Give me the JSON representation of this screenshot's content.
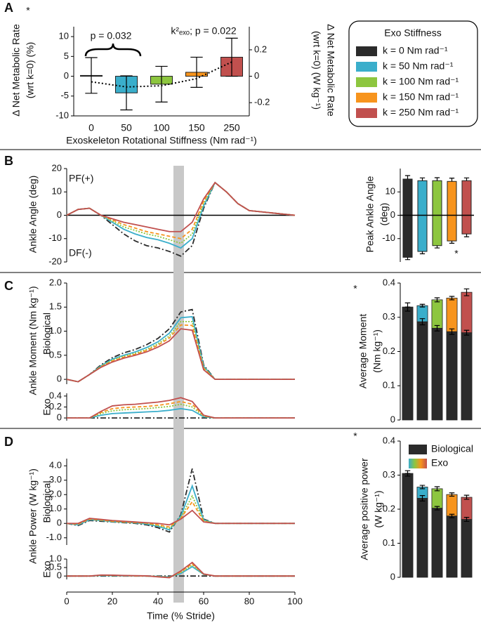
{
  "chart_data": [
    {
      "type": "bar",
      "panel": "A",
      "categories": [
        "0",
        "50",
        "100",
        "150",
        "250"
      ],
      "colors": [
        "#2b2b2b",
        "#3aaecb",
        "#8dc63f",
        "#f7941d",
        "#c1504e"
      ],
      "series": [
        {
          "values": [
            0.2,
            -4.2,
            -2.0,
            1.0,
            4.8
          ],
          "errors": [
            4.5,
            4.3,
            4.5,
            3.8,
            4.8
          ]
        }
      ],
      "error_direction": "both",
      "fit": [
        -1.4,
        -2.7,
        -2.4,
        -0.6,
        3.6
      ],
      "ylim": [
        -10,
        12.5
      ],
      "yticks": [
        -10,
        -5,
        0,
        5,
        10
      ],
      "y2lim": [
        -0.3,
        0.375
      ],
      "y2ticks": [
        -0.2,
        0,
        0.2
      ],
      "ylabel": [
        "Δ Net Metabolic Rate",
        "(wrt k=0) (%)"
      ],
      "y2label": [
        "Δ Net Metabolic Rate",
        "(wrt k=0) (W kg⁻¹)"
      ],
      "xlabel": "Exoskeleton Rotational Stiffness (Nm rad⁻¹)",
      "annotations": [
        "p = 0.032",
        "k²ₑₓₒ; p = 0.022",
        "*"
      ],
      "legend": {
        "title": "Exo Stiffness",
        "labels": [
          "k = 0 Nm rad⁻¹",
          "k = 50 Nm rad⁻¹",
          "k = 100 Nm rad⁻¹",
          "k = 150 Nm rad⁻¹",
          "k = 250 Nm rad⁻¹"
        ]
      }
    },
    {
      "type": "line",
      "panel": "B",
      "zero_line": true,
      "x": [
        0,
        5,
        10,
        15,
        20,
        25,
        30,
        35,
        40,
        45,
        50,
        55,
        60,
        65,
        70,
        75,
        80,
        85,
        90,
        95,
        100
      ],
      "xlim": [
        0,
        100
      ],
      "ylim": [
        -20,
        20
      ],
      "yticks": [
        -20,
        -10,
        0,
        10,
        20
      ],
      "ylabel": "Ankle Angle (deg)",
      "annotations": [
        "PF(+)",
        "DF(-)"
      ],
      "series": [
        {
          "color": "#2b2b2b",
          "dash": "8 3 2 3",
          "values": [
            0,
            2.5,
            3,
            0,
            -4,
            -8,
            -11,
            -13,
            -14,
            -15.5,
            -17.5,
            -13,
            3,
            14,
            10,
            5,
            2,
            1.5,
            1,
            0.5,
            0
          ]
        },
        {
          "color": "#3aaecb",
          "dash": "none",
          "values": [
            0,
            2.5,
            3,
            0,
            -3,
            -6,
            -8,
            -9.5,
            -10.5,
            -12,
            -14,
            -10,
            4,
            14,
            10,
            5,
            2,
            1.5,
            1,
            0.5,
            0
          ]
        },
        {
          "color": "#8dc63f",
          "dash": "2 2",
          "values": [
            0,
            2.5,
            3,
            0,
            -2.5,
            -5,
            -6.5,
            -8,
            -9,
            -10.5,
            -12,
            -8,
            5,
            14,
            10,
            5,
            2,
            1.5,
            1,
            0.5,
            0
          ]
        },
        {
          "color": "#f7941d",
          "dash": "5 3",
          "values": [
            0,
            2.5,
            3,
            0,
            -2,
            -4,
            -5.5,
            -7,
            -8,
            -9,
            -10,
            -6,
            6,
            14,
            10,
            5,
            2,
            1.5,
            1,
            0.5,
            0
          ]
        },
        {
          "color": "#c1504e",
          "dash": "none",
          "values": [
            0,
            2.5,
            3,
            0,
            -1.5,
            -3,
            -4,
            -5,
            -6,
            -7,
            -7,
            -3,
            7,
            14,
            10,
            5,
            2,
            1.5,
            1,
            0.5,
            0
          ]
        }
      ]
    },
    {
      "type": "bar",
      "zero_line": true,
      "error_direction": "outward",
      "colors": [
        "#2b2b2b",
        "#3aaecb",
        "#8dc63f",
        "#f7941d",
        "#c1504e"
      ],
      "series": [
        {
          "values": [
            15.5,
            14.8,
            14.8,
            14.5,
            14.8
          ],
          "errors": [
            1.5,
            1.2,
            1.3,
            1.4,
            1.2
          ]
        },
        {
          "values": [
            -18,
            -15.5,
            -13,
            -11,
            -8
          ],
          "errors": [
            1,
            1,
            1,
            1,
            1.2
          ]
        }
      ],
      "ylim": [
        -20,
        20
      ],
      "yticks": [
        -10,
        0,
        10
      ],
      "ylabel": [
        "Peak Ankle Angle",
        "(deg)"
      ],
      "annotations": [
        "*"
      ]
    },
    {
      "type": "line",
      "panel": "C",
      "x": [
        0,
        5,
        10,
        15,
        20,
        25,
        30,
        35,
        40,
        45,
        50,
        55,
        60,
        65,
        70,
        75,
        80,
        85,
        90,
        95,
        100
      ],
      "xlim": [
        0,
        100
      ],
      "ylim": [
        -0.1,
        2.0
      ],
      "yticks": [
        0,
        0.5,
        {
          "value": 1,
          "label": "1.0"
        },
        1.5,
        {
          "value": 2,
          "label": "2.0"
        }
      ],
      "ylabel": "Ankle Moment (Nm kg⁻¹)",
      "sublabel": "Biological",
      "series": [
        {
          "color": "#2b2b2b",
          "dash": "8 3 2 3",
          "values": [
            0,
            -0.05,
            0.1,
            0.3,
            0.45,
            0.55,
            0.62,
            0.72,
            0.85,
            1.05,
            1.4,
            1.45,
            0.3,
            0,
            0,
            0,
            0,
            0,
            0,
            0,
            0
          ]
        },
        {
          "color": "#3aaecb",
          "dash": "none",
          "values": [
            0,
            -0.05,
            0.1,
            0.28,
            0.42,
            0.5,
            0.57,
            0.66,
            0.78,
            0.96,
            1.28,
            1.3,
            0.27,
            0,
            0,
            0,
            0,
            0,
            0,
            0,
            0
          ]
        },
        {
          "color": "#8dc63f",
          "dash": "2 2",
          "values": [
            0,
            -0.05,
            0.1,
            0.27,
            0.4,
            0.48,
            0.54,
            0.62,
            0.74,
            0.9,
            1.2,
            1.2,
            0.25,
            0,
            0,
            0,
            0,
            0,
            0,
            0,
            0
          ]
        },
        {
          "color": "#f7941d",
          "dash": "5 3",
          "values": [
            0,
            -0.05,
            0.1,
            0.26,
            0.38,
            0.46,
            0.52,
            0.6,
            0.71,
            0.86,
            1.13,
            1.12,
            0.23,
            0,
            0,
            0,
            0,
            0,
            0,
            0,
            0
          ]
        },
        {
          "color": "#c1504e",
          "dash": "none",
          "values": [
            0,
            -0.05,
            0.1,
            0.25,
            0.36,
            0.44,
            0.5,
            0.57,
            0.67,
            0.8,
            1.05,
            1.02,
            0.2,
            0,
            0,
            0,
            0,
            0,
            0,
            0,
            0
          ]
        }
      ]
    },
    {
      "type": "line",
      "x": [
        0,
        5,
        10,
        15,
        20,
        25,
        30,
        35,
        40,
        45,
        50,
        55,
        60,
        65,
        70,
        75,
        80,
        85,
        90,
        95,
        100
      ],
      "xlim": [
        0,
        100
      ],
      "ylim": [
        -0.05,
        0.45
      ],
      "yticks": [
        0,
        0.2,
        0.4
      ],
      "sublabel": "Exo",
      "series": [
        {
          "color": "#2b2b2b",
          "dash": "8 3 2 3",
          "values": [
            0,
            0,
            0,
            0,
            0,
            0,
            0,
            0,
            0,
            0,
            0,
            0,
            0,
            0,
            0,
            0,
            0,
            0,
            0,
            0,
            0
          ]
        },
        {
          "color": "#3aaecb",
          "dash": "none",
          "values": [
            0,
            0,
            0,
            0.05,
            0.08,
            0.09,
            0.1,
            0.11,
            0.12,
            0.14,
            0.17,
            0.14,
            0.02,
            0,
            0,
            0,
            0,
            0,
            0,
            0,
            0
          ]
        },
        {
          "color": "#8dc63f",
          "dash": "2 2",
          "values": [
            0,
            0,
            0,
            0.08,
            0.13,
            0.15,
            0.16,
            0.17,
            0.19,
            0.21,
            0.25,
            0.2,
            0.03,
            0,
            0,
            0,
            0,
            0,
            0,
            0,
            0
          ]
        },
        {
          "color": "#f7941d",
          "dash": "5 3",
          "values": [
            0,
            0,
            0,
            0.1,
            0.17,
            0.19,
            0.2,
            0.21,
            0.23,
            0.26,
            0.3,
            0.25,
            0.04,
            0,
            0,
            0,
            0,
            0,
            0,
            0,
            0
          ]
        },
        {
          "color": "#c1504e",
          "dash": "none",
          "values": [
            0,
            0,
            0,
            0.12,
            0.22,
            0.24,
            0.25,
            0.27,
            0.29,
            0.32,
            0.37,
            0.3,
            0.05,
            0,
            0,
            0,
            0,
            0,
            0,
            0,
            0
          ]
        }
      ]
    },
    {
      "type": "stacked_bar",
      "series": [
        {
          "color": "#2b2b2b",
          "values": [
            0.33,
            0.287,
            0.268,
            0.258,
            0.255
          ],
          "errors": [
            0.012,
            0.009,
            0.008,
            0.008,
            0.007
          ]
        },
        {
          "colors": [
            "#2b2b2b",
            "#3aaecb",
            "#8dc63f",
            "#f7941d",
            "#c1504e"
          ],
          "values": [
            0,
            0.047,
            0.083,
            0.098,
            0.118
          ],
          "errors": [
            0,
            0.004,
            0.006,
            0.005,
            0.01
          ]
        }
      ],
      "ylim": [
        0,
        0.4
      ],
      "yticks": [
        0,
        0.1,
        0.2,
        0.3,
        0.4
      ],
      "ylabel": [
        "Average Moment",
        "(Nm kg⁻¹)"
      ],
      "annotations": [
        "*"
      ]
    },
    {
      "type": "line",
      "panel": "D",
      "x": [
        0,
        5,
        10,
        15,
        20,
        25,
        30,
        35,
        40,
        45,
        50,
        55,
        60,
        65,
        70,
        75,
        80,
        85,
        90,
        95,
        100
      ],
      "xlim": [
        0,
        100
      ],
      "ylim": [
        -1.5,
        4.5
      ],
      "yticks": [
        {
          "value": -1,
          "label": "-1.0"
        },
        0,
        {
          "value": 1,
          "label": "1.0"
        },
        {
          "value": 2,
          "label": "2.0"
        },
        {
          "value": 3,
          "label": "3.0"
        },
        {
          "value": 4,
          "label": "4.0"
        }
      ],
      "ylabel": "Ankle Power (W kg⁻¹)",
      "sublabel": "Biological",
      "series": [
        {
          "color": "#2b2b2b",
          "dash": "8 3 2 3",
          "values": [
            0,
            -0.15,
            0.2,
            0.15,
            0.1,
            0.05,
            0,
            -0.1,
            -0.3,
            -0.6,
            0.6,
            3.8,
            0.3,
            0,
            0,
            0,
            0,
            0,
            0,
            0,
            0
          ]
        },
        {
          "color": "#3aaecb",
          "dash": "none",
          "values": [
            0,
            -0.1,
            0.25,
            0.2,
            0.12,
            0.08,
            0.03,
            -0.05,
            -0.2,
            -0.45,
            0.5,
            2.6,
            0.25,
            0,
            0,
            0,
            0,
            0,
            0,
            0,
            0
          ]
        },
        {
          "color": "#8dc63f",
          "dash": "2 2",
          "values": [
            0,
            -0.05,
            0.3,
            0.22,
            0.14,
            0.1,
            0.05,
            0,
            -0.15,
            -0.35,
            0.4,
            1.9,
            0.2,
            0,
            0,
            0,
            0,
            0,
            0,
            0,
            0
          ]
        },
        {
          "color": "#f7941d",
          "dash": "5 3",
          "values": [
            0,
            -0.05,
            0.3,
            0.24,
            0.15,
            0.1,
            0.06,
            0.02,
            -0.1,
            -0.25,
            0.35,
            1.5,
            0.15,
            0,
            0,
            0,
            0,
            0,
            0,
            0,
            0
          ]
        },
        {
          "color": "#c1504e",
          "dash": "none",
          "values": [
            0,
            0,
            0.35,
            0.28,
            0.2,
            0.15,
            0.1,
            0.05,
            0,
            -0.1,
            0.3,
            0.9,
            0.1,
            0,
            0,
            0,
            0,
            0,
            0,
            0,
            0
          ]
        }
      ]
    },
    {
      "type": "line",
      "x": [
        0,
        5,
        10,
        15,
        20,
        25,
        30,
        35,
        40,
        45,
        50,
        55,
        60,
        65,
        70,
        75,
        80,
        85,
        90,
        95,
        100
      ],
      "xlim": [
        0,
        100
      ],
      "xticks": [
        0,
        20,
        40,
        60,
        80,
        100
      ],
      "xlabel": "Time (% Stride)",
      "ylim": [
        -0.2,
        1.0
      ],
      "yticks": [
        0,
        0.5,
        {
          "value": 1,
          "label": "1.0"
        }
      ],
      "sublabel": "Exo",
      "series": [
        {
          "color": "#2b2b2b",
          "dash": "8 3 2 3",
          "values": [
            0,
            0,
            0,
            0,
            0,
            0,
            0,
            0,
            0,
            0,
            0,
            0,
            0,
            0,
            0,
            0,
            0,
            0,
            0,
            0,
            0
          ]
        },
        {
          "color": "#3aaecb",
          "dash": "none",
          "values": [
            0,
            0,
            0,
            0.03,
            0.02,
            0.01,
            0.01,
            0,
            -0.02,
            -0.05,
            0.15,
            0.55,
            0.1,
            0,
            0,
            0,
            0,
            0,
            0,
            0,
            0
          ]
        },
        {
          "color": "#8dc63f",
          "dash": "2 2",
          "values": [
            0,
            0,
            0,
            0.04,
            0.03,
            0.02,
            0.01,
            0,
            -0.03,
            -0.07,
            0.2,
            0.65,
            0.1,
            0,
            0,
            0,
            0,
            0,
            0,
            0,
            0
          ]
        },
        {
          "color": "#f7941d",
          "dash": "5 3",
          "values": [
            0,
            0,
            0,
            0.05,
            0.04,
            0.02,
            0.01,
            0,
            -0.04,
            -0.08,
            0.25,
            0.72,
            0.12,
            0,
            0,
            0,
            0,
            0,
            0,
            0,
            0
          ]
        },
        {
          "color": "#c1504e",
          "dash": "none",
          "values": [
            0,
            0,
            0,
            0.06,
            0.05,
            0.03,
            0.02,
            0.01,
            -0.05,
            -0.1,
            0.3,
            0.8,
            0.12,
            0,
            0,
            0,
            0,
            0,
            0,
            0,
            0
          ]
        }
      ]
    },
    {
      "type": "stacked_bar",
      "legend": true,
      "series": [
        {
          "name": "Biological",
          "color": "#2b2b2b",
          "values": [
            0.305,
            0.232,
            0.203,
            0.18,
            0.17
          ],
          "errors": [
            0.008,
            0.008,
            0.005,
            0.005,
            0.006
          ]
        },
        {
          "name": "Exo",
          "colors": [
            "#2b2b2b",
            "#3aaecb",
            "#8dc63f",
            "#f7941d",
            "#c1504e"
          ],
          "values": [
            0,
            0.033,
            0.057,
            0.063,
            0.065
          ],
          "errors": [
            0,
            0.005,
            0.006,
            0.005,
            0.006
          ]
        }
      ],
      "ylim": [
        0,
        0.4
      ],
      "yticks": [
        0,
        0.1,
        0.2,
        0.3,
        0.4
      ],
      "ylabel": [
        "Average positive power",
        "(W kg⁻¹)"
      ],
      "annotations": [
        "*"
      ]
    }
  ]
}
